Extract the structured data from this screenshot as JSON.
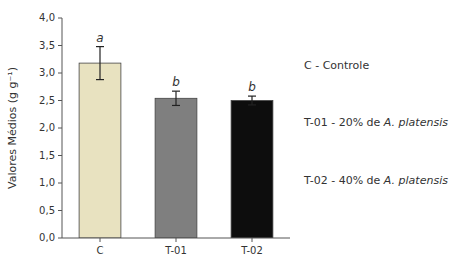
{
  "chart_data": {
    "type": "bar",
    "categories": [
      "C",
      "T-01",
      "T-02"
    ],
    "values": [
      3.18,
      2.54,
      2.5
    ],
    "errors": [
      0.3,
      0.13,
      0.08
    ],
    "colors": [
      "#e8e2c0",
      "#7f7f7f",
      "#0d0d0d"
    ],
    "annotations": [
      "a",
      "b",
      "b"
    ],
    "y_label": "Valores Médios (g g⁻¹)",
    "ylim": [
      0,
      4.0
    ],
    "yticks": [
      {
        "value": 0.0,
        "label": "0,0"
      },
      {
        "value": 0.5,
        "label": "0,5"
      },
      {
        "value": 1.0,
        "label": "1,0"
      },
      {
        "value": 1.5,
        "label": "1,5"
      },
      {
        "value": 2.0,
        "label": "2,0"
      },
      {
        "value": 2.5,
        "label": "2,5"
      },
      {
        "value": 3.0,
        "label": "3,0"
      },
      {
        "value": 3.5,
        "label": "3,5"
      },
      {
        "value": 4.0,
        "label": "4,0"
      }
    ],
    "legend_entries": [
      [
        "C - Controle"
      ],
      [
        "T-01 - 20% de ",
        "A. platensis"
      ],
      [
        "T-02 - 40% de ",
        "A. platensis"
      ]
    ]
  }
}
